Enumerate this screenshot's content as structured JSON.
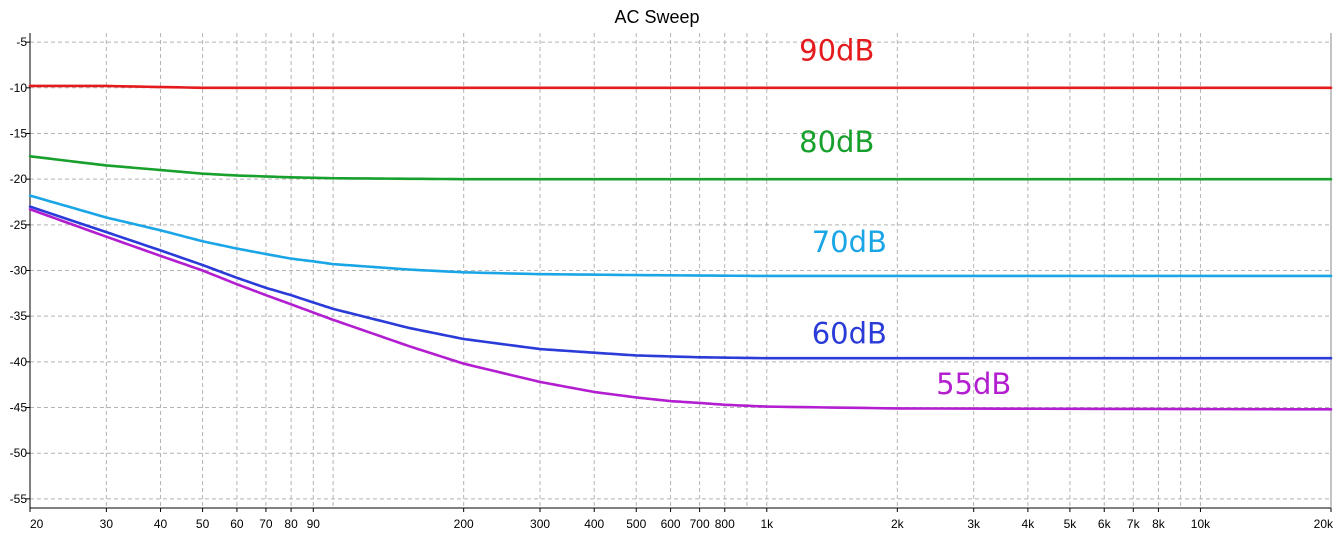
{
  "chart_data": {
    "type": "line",
    "title": "AC Sweep",
    "xlabel": "",
    "ylabel": "",
    "xscale": "log",
    "xlim": [
      20,
      20000
    ],
    "ylim": [
      -56,
      -4
    ],
    "grid": true,
    "x_ticks": [
      {
        "value": 20,
        "label": "20"
      },
      {
        "value": 30,
        "label": "30"
      },
      {
        "value": 40,
        "label": "40"
      },
      {
        "value": 50,
        "label": "50"
      },
      {
        "value": 60,
        "label": "60"
      },
      {
        "value": 70,
        "label": "70"
      },
      {
        "value": 80,
        "label": "80"
      },
      {
        "value": 90,
        "label": "90"
      },
      {
        "value": 200,
        "label": "200"
      },
      {
        "value": 300,
        "label": "300"
      },
      {
        "value": 400,
        "label": "400"
      },
      {
        "value": 500,
        "label": "500"
      },
      {
        "value": 600,
        "label": "600"
      },
      {
        "value": 700,
        "label": "700"
      },
      {
        "value": 800,
        "label": "800"
      },
      {
        "value": 1000,
        "label": "1k"
      },
      {
        "value": 2000,
        "label": "2k"
      },
      {
        "value": 3000,
        "label": "3k"
      },
      {
        "value": 4000,
        "label": "4k"
      },
      {
        "value": 5000,
        "label": "5k"
      },
      {
        "value": 6000,
        "label": "6k"
      },
      {
        "value": 7000,
        "label": "7k"
      },
      {
        "value": 8000,
        "label": "8k"
      },
      {
        "value": 10000,
        "label": "10k"
      },
      {
        "value": 20000,
        "label": "20k"
      }
    ],
    "x_grid_values": [
      20,
      30,
      40,
      50,
      60,
      70,
      80,
      90,
      100,
      200,
      300,
      400,
      500,
      600,
      700,
      800,
      900,
      1000,
      2000,
      3000,
      4000,
      5000,
      6000,
      7000,
      8000,
      9000,
      10000,
      20000
    ],
    "y_ticks": [
      {
        "value": -5,
        "label": "-5"
      },
      {
        "value": -10,
        "label": "-10"
      },
      {
        "value": -15,
        "label": "-15"
      },
      {
        "value": -20,
        "label": "-20"
      },
      {
        "value": -25,
        "label": "-25"
      },
      {
        "value": -30,
        "label": "-30"
      },
      {
        "value": -35,
        "label": "-35"
      },
      {
        "value": -40,
        "label": "-40"
      },
      {
        "value": -45,
        "label": "-45"
      },
      {
        "value": -50,
        "label": "-50"
      },
      {
        "value": -55,
        "label": "-55"
      }
    ],
    "series": [
      {
        "name": "90dB",
        "color": "#e41a1c",
        "label_at": {
          "x": 1450,
          "y": -7
        },
        "points": [
          [
            20,
            -9.8
          ],
          [
            30,
            -9.8
          ],
          [
            50,
            -10.0
          ],
          [
            100,
            -10.0
          ],
          [
            1000,
            -10.0
          ],
          [
            20000,
            -10.0
          ]
        ]
      },
      {
        "name": "80dB",
        "color": "#17a02b",
        "label_at": {
          "x": 1450,
          "y": -17
        },
        "points": [
          [
            20,
            -17.5
          ],
          [
            30,
            -18.5
          ],
          [
            40,
            -19.0
          ],
          [
            50,
            -19.4
          ],
          [
            60,
            -19.6
          ],
          [
            80,
            -19.8
          ],
          [
            100,
            -19.9
          ],
          [
            200,
            -20.0
          ],
          [
            1000,
            -20.0
          ],
          [
            20000,
            -20.0
          ]
        ]
      },
      {
        "name": "70dB",
        "color": "#1aa5e6",
        "label_at": {
          "x": 1550,
          "y": -28
        },
        "points": [
          [
            20,
            -21.8
          ],
          [
            30,
            -24.2
          ],
          [
            40,
            -25.6
          ],
          [
            50,
            -26.8
          ],
          [
            60,
            -27.6
          ],
          [
            70,
            -28.2
          ],
          [
            80,
            -28.7
          ],
          [
            90,
            -29.0
          ],
          [
            100,
            -29.3
          ],
          [
            150,
            -29.9
          ],
          [
            200,
            -30.2
          ],
          [
            300,
            -30.4
          ],
          [
            500,
            -30.5
          ],
          [
            1000,
            -30.6
          ],
          [
            20000,
            -30.6
          ]
        ]
      },
      {
        "name": "60dB",
        "color": "#2a3bd8",
        "label_at": {
          "x": 1550,
          "y": -38
        },
        "points": [
          [
            20,
            -23.0
          ],
          [
            30,
            -25.8
          ],
          [
            40,
            -27.8
          ],
          [
            50,
            -29.4
          ],
          [
            60,
            -30.8
          ],
          [
            70,
            -31.9
          ],
          [
            80,
            -32.7
          ],
          [
            90,
            -33.5
          ],
          [
            100,
            -34.2
          ],
          [
            150,
            -36.3
          ],
          [
            200,
            -37.5
          ],
          [
            300,
            -38.6
          ],
          [
            400,
            -39.0
          ],
          [
            500,
            -39.3
          ],
          [
            700,
            -39.5
          ],
          [
            1000,
            -39.6
          ],
          [
            20000,
            -39.6
          ]
        ]
      },
      {
        "name": "55dB",
        "color": "#b21ed0",
        "label_at": {
          "x": 3000,
          "y": -43.5
        },
        "points": [
          [
            20,
            -23.3
          ],
          [
            30,
            -26.3
          ],
          [
            40,
            -28.4
          ],
          [
            50,
            -30.0
          ],
          [
            60,
            -31.5
          ],
          [
            70,
            -32.7
          ],
          [
            80,
            -33.7
          ],
          [
            90,
            -34.6
          ],
          [
            100,
            -35.4
          ],
          [
            150,
            -38.3
          ],
          [
            200,
            -40.2
          ],
          [
            300,
            -42.2
          ],
          [
            400,
            -43.3
          ],
          [
            500,
            -43.9
          ],
          [
            600,
            -44.3
          ],
          [
            700,
            -44.5
          ],
          [
            800,
            -44.7
          ],
          [
            1000,
            -44.9
          ],
          [
            2000,
            -45.1
          ],
          [
            20000,
            -45.2
          ]
        ]
      }
    ]
  }
}
